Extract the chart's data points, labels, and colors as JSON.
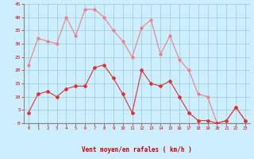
{
  "x": [
    0,
    1,
    2,
    3,
    4,
    5,
    6,
    7,
    8,
    9,
    10,
    11,
    12,
    13,
    14,
    15,
    16,
    17,
    18,
    19,
    20,
    21,
    22,
    23
  ],
  "y_mean": [
    4,
    11,
    12,
    10,
    13,
    14,
    14,
    21,
    22,
    17,
    11,
    4,
    20,
    15,
    14,
    16,
    10,
    4,
    1,
    1,
    0,
    1,
    6,
    1
  ],
  "y_gust": [
    22,
    32,
    31,
    30,
    40,
    33,
    43,
    43,
    40,
    35,
    31,
    25,
    36,
    39,
    26,
    33,
    24,
    20,
    11,
    10,
    0,
    1,
    6,
    1
  ],
  "line_color_mean": "#e03030",
  "line_color_gust": "#f08080",
  "bg_color": "#cceeff",
  "grid_color": "#99cccc",
  "xlabel": "Vent moyen/en rafales ( km/h )",
  "xlabel_color": "#cc0000",
  "tick_color": "#cc0000",
  "ylim": [
    0,
    45
  ],
  "yticks": [
    0,
    5,
    10,
    15,
    20,
    25,
    30,
    35,
    40,
    45
  ],
  "spine_color": "#888888",
  "fig_width": 3.2,
  "fig_height": 2.0,
  "dpi": 100
}
